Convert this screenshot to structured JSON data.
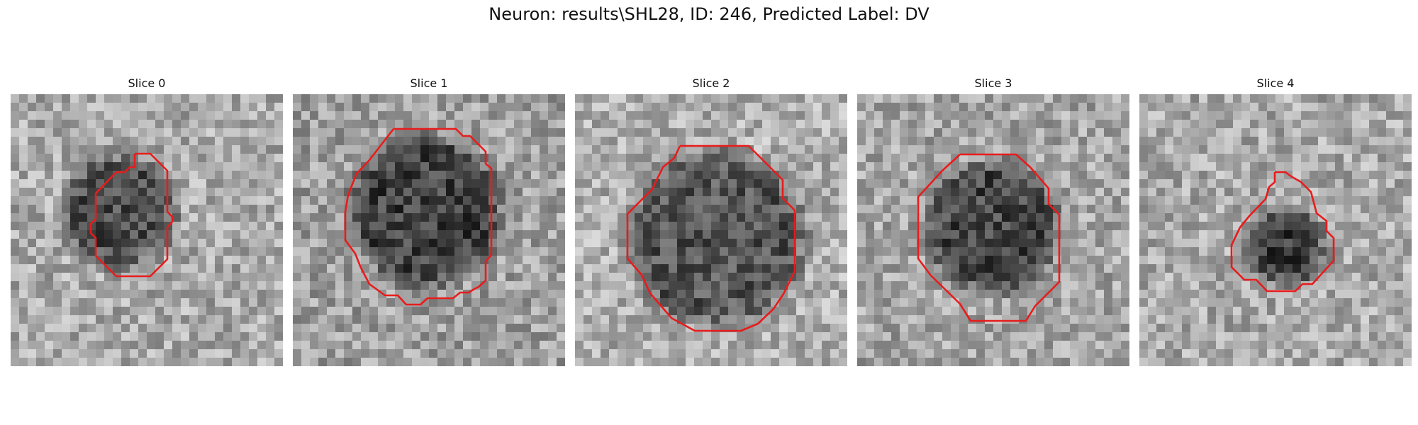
{
  "figure": {
    "title": "Neuron: results\\SHL28, ID: 246, Predicted Label: DV"
  },
  "panels": [
    {
      "title": "Slice 0"
    },
    {
      "title": "Slice 1"
    },
    {
      "title": "Slice 2"
    },
    {
      "title": "Slice 3"
    },
    {
      "title": "Slice 4"
    }
  ],
  "colors": {
    "contour": "#e81c1c",
    "background": "#ffffff"
  }
}
